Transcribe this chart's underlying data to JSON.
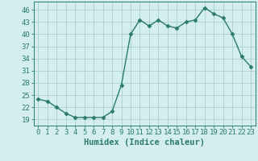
{
  "x": [
    0,
    1,
    2,
    3,
    4,
    5,
    6,
    7,
    8,
    9,
    10,
    11,
    12,
    13,
    14,
    15,
    16,
    17,
    18,
    19,
    20,
    21,
    22,
    23
  ],
  "y": [
    24,
    23.5,
    22,
    20.5,
    19.5,
    19.5,
    19.5,
    19.5,
    21,
    27.5,
    40,
    43.5,
    42,
    43.5,
    42,
    41.5,
    43,
    43.5,
    46.5,
    45,
    44,
    40,
    34.5,
    32
  ],
  "line_color": "#2a7a6a",
  "marker_color": "#2a7a6a",
  "bg_color": "#d4eeee",
  "grid_color": "#aed4d4",
  "xlabel": "Humidex (Indice chaleur)",
  "yticks": [
    19,
    22,
    25,
    28,
    31,
    34,
    37,
    40,
    43,
    46
  ],
  "xticks": [
    0,
    1,
    2,
    3,
    4,
    5,
    6,
    7,
    8,
    9,
    10,
    11,
    12,
    13,
    14,
    15,
    16,
    17,
    18,
    19,
    20,
    21,
    22,
    23
  ],
  "ylim": [
    17.5,
    48
  ],
  "xlim": [
    -0.5,
    23.5
  ],
  "label_fontsize": 7.5,
  "tick_fontsize": 6.5
}
